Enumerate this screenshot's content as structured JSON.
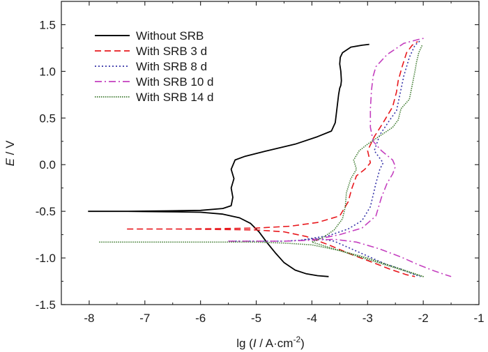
{
  "chart_data": {
    "type": "line",
    "title": "",
    "xlabel": "lg (I / A·cm⁻²)",
    "xlabel_parts": {
      "prefix": "lg (",
      "italic": "I",
      "mid": " / A·cm",
      "sup": "-2",
      "suffix": ")"
    },
    "ylabel": "E / V",
    "ylabel_parts": {
      "italic": "E",
      "rest": " / V"
    },
    "xlim": [
      -8.5,
      -1
    ],
    "ylim": [
      -1.5,
      1.75
    ],
    "xticks": [
      -8,
      -7,
      -6,
      -5,
      -4,
      -3,
      -2,
      -1
    ],
    "xtick_labels": [
      "-8",
      "-7",
      "-6",
      "-5",
      "-4",
      "-3",
      "-2",
      "-1"
    ],
    "yticks": [
      -1.5,
      -1.0,
      -0.5,
      0.0,
      0.5,
      1.0,
      1.5
    ],
    "ytick_labels": [
      "-1.5",
      "-1.0",
      "-0.5",
      "0.0",
      "0.5",
      "1.0",
      "1.5"
    ],
    "grid": false,
    "legend_position": "top-left",
    "series": [
      {
        "name": "Without SRB",
        "color": "#000000",
        "dash": "solid",
        "points": [
          [
            -8.02,
            -0.5
          ],
          [
            -7.3,
            -0.5
          ],
          [
            -6.6,
            -0.505
          ],
          [
            -6.0,
            -0.51
          ],
          [
            -5.6,
            -0.53
          ],
          [
            -5.3,
            -0.57
          ],
          [
            -5.1,
            -0.63
          ],
          [
            -4.95,
            -0.72
          ],
          [
            -4.8,
            -0.84
          ],
          [
            -4.65,
            -0.95
          ],
          [
            -4.5,
            -1.05
          ],
          [
            -4.3,
            -1.13
          ],
          [
            -4.1,
            -1.17
          ],
          [
            -3.9,
            -1.19
          ],
          [
            -3.7,
            -1.2
          ],
          [
            -8.02,
            -0.5
          ],
          [
            -7.3,
            -0.5
          ],
          [
            -6.6,
            -0.495
          ],
          [
            -6.0,
            -0.49
          ],
          [
            -5.6,
            -0.47
          ],
          [
            -5.45,
            -0.44
          ],
          [
            -5.42,
            -0.35
          ],
          [
            -5.45,
            -0.25
          ],
          [
            -5.4,
            -0.15
          ],
          [
            -5.45,
            -0.05
          ],
          [
            -5.38,
            0.05
          ],
          [
            -5.2,
            0.09
          ],
          [
            -4.8,
            0.15
          ],
          [
            -4.3,
            0.22
          ],
          [
            -3.9,
            0.3
          ],
          [
            -3.65,
            0.36
          ],
          [
            -3.58,
            0.45
          ],
          [
            -3.55,
            0.6
          ],
          [
            -3.52,
            0.75
          ],
          [
            -3.5,
            0.82
          ],
          [
            -3.48,
            0.85
          ],
          [
            -3.47,
            0.9
          ],
          [
            -3.48,
            1.0
          ],
          [
            -3.5,
            1.08
          ],
          [
            -3.49,
            1.15
          ],
          [
            -3.45,
            1.2
          ],
          [
            -3.3,
            1.26
          ],
          [
            -3.1,
            1.28
          ],
          [
            -2.97,
            1.29
          ]
        ]
      },
      {
        "name": "With SRB 3 d",
        "color": "#e8171c",
        "dash": "dashed",
        "points": [
          [
            -7.32,
            -0.69
          ],
          [
            -6.4,
            -0.69
          ],
          [
            -5.6,
            -0.695
          ],
          [
            -5.0,
            -0.7
          ],
          [
            -4.5,
            -0.72
          ],
          [
            -4.1,
            -0.77
          ],
          [
            -3.7,
            -0.86
          ],
          [
            -3.3,
            -0.96
          ],
          [
            -2.9,
            -1.05
          ],
          [
            -2.6,
            -1.12
          ],
          [
            -2.3,
            -1.18
          ],
          [
            -2.15,
            -1.2
          ],
          [
            -7.32,
            -0.69
          ],
          [
            -6.4,
            -0.69
          ],
          [
            -5.6,
            -0.685
          ],
          [
            -5.0,
            -0.68
          ],
          [
            -4.4,
            -0.66
          ],
          [
            -3.9,
            -0.62
          ],
          [
            -3.5,
            -0.55
          ],
          [
            -3.35,
            -0.4
          ],
          [
            -3.28,
            -0.25
          ],
          [
            -3.2,
            -0.12
          ],
          [
            -3.05,
            -0.05
          ],
          [
            -2.95,
            0.02
          ],
          [
            -3.0,
            0.15
          ],
          [
            -2.88,
            0.3
          ],
          [
            -2.72,
            0.45
          ],
          [
            -2.55,
            0.62
          ],
          [
            -2.48,
            0.78
          ],
          [
            -2.45,
            0.9
          ],
          [
            -2.38,
            1.05
          ],
          [
            -2.3,
            1.2
          ],
          [
            -2.2,
            1.28
          ],
          [
            -2.1,
            1.32
          ]
        ]
      },
      {
        "name": "With SRB 8 d",
        "color": "#3533a8",
        "dash": "dotted",
        "points": [
          [
            -5.5,
            -0.82
          ],
          [
            -5.0,
            -0.82
          ],
          [
            -4.5,
            -0.82
          ],
          [
            -4.2,
            -0.81
          ],
          [
            -3.9,
            -0.79
          ],
          [
            -3.6,
            -0.82
          ],
          [
            -3.3,
            -0.9
          ],
          [
            -3.0,
            -0.98
          ],
          [
            -2.7,
            -1.06
          ],
          [
            -2.4,
            -1.12
          ],
          [
            -2.2,
            -1.17
          ],
          [
            -2.05,
            -1.2
          ],
          [
            -4.2,
            -0.81
          ],
          [
            -3.7,
            -0.76
          ],
          [
            -3.35,
            -0.69
          ],
          [
            -3.1,
            -0.6
          ],
          [
            -2.95,
            -0.45
          ],
          [
            -2.85,
            -0.2
          ],
          [
            -2.78,
            -0.05
          ],
          [
            -2.72,
            0.02
          ],
          [
            -2.88,
            0.15
          ],
          [
            -2.78,
            0.32
          ],
          [
            -2.6,
            0.48
          ],
          [
            -2.48,
            0.58
          ],
          [
            -2.42,
            0.75
          ],
          [
            -2.35,
            0.95
          ],
          [
            -2.25,
            1.15
          ],
          [
            -2.15,
            1.28
          ],
          [
            -2.05,
            1.33
          ]
        ]
      },
      {
        "name": "With SRB 10 d",
        "color": "#c43fbf",
        "dash": "dashdot",
        "points": [
          [
            -5.5,
            -0.82
          ],
          [
            -5.0,
            -0.82
          ],
          [
            -4.5,
            -0.82
          ],
          [
            -4.0,
            -0.81
          ],
          [
            -3.6,
            -0.8
          ],
          [
            -3.2,
            -0.83
          ],
          [
            -2.8,
            -0.9
          ],
          [
            -2.4,
            -0.99
          ],
          [
            -2.1,
            -1.07
          ],
          [
            -1.8,
            -1.14
          ],
          [
            -1.6,
            -1.18
          ],
          [
            -1.5,
            -1.2
          ],
          [
            -4.0,
            -0.81
          ],
          [
            -3.5,
            -0.75
          ],
          [
            -3.1,
            -0.68
          ],
          [
            -2.85,
            -0.55
          ],
          [
            -2.75,
            -0.35
          ],
          [
            -2.65,
            -0.2
          ],
          [
            -2.55,
            -0.1
          ],
          [
            -2.5,
            -0.02
          ],
          [
            -2.55,
            0.05
          ],
          [
            -2.75,
            0.15
          ],
          [
            -2.9,
            0.25
          ],
          [
            -2.95,
            0.4
          ],
          [
            -2.95,
            0.6
          ],
          [
            -2.93,
            0.8
          ],
          [
            -2.9,
            0.95
          ],
          [
            -2.85,
            1.05
          ],
          [
            -2.65,
            1.18
          ],
          [
            -2.35,
            1.3
          ],
          [
            -2.1,
            1.34
          ],
          [
            -1.95,
            1.36
          ]
        ]
      },
      {
        "name": "With SRB 14 d",
        "color": "#3d7a2e",
        "dash": "densedot",
        "points": [
          [
            -7.82,
            -0.83
          ],
          [
            -7.0,
            -0.83
          ],
          [
            -6.0,
            -0.83
          ],
          [
            -5.0,
            -0.83
          ],
          [
            -4.5,
            -0.84
          ],
          [
            -4.0,
            -0.86
          ],
          [
            -3.5,
            -0.92
          ],
          [
            -3.0,
            -1.0
          ],
          [
            -2.6,
            -1.08
          ],
          [
            -2.3,
            -1.14
          ],
          [
            -2.1,
            -1.18
          ],
          [
            -2.0,
            -1.2
          ],
          [
            -4.0,
            -0.83
          ],
          [
            -3.8,
            -0.78
          ],
          [
            -3.6,
            -0.7
          ],
          [
            -3.45,
            -0.58
          ],
          [
            -3.4,
            -0.45
          ],
          [
            -3.38,
            -0.3
          ],
          [
            -3.3,
            -0.15
          ],
          [
            -3.2,
            -0.05
          ],
          [
            -3.25,
            0.05
          ],
          [
            -3.15,
            0.15
          ],
          [
            -3.0,
            0.22
          ],
          [
            -2.8,
            0.3
          ],
          [
            -2.55,
            0.4
          ],
          [
            -2.45,
            0.48
          ],
          [
            -2.4,
            0.6
          ],
          [
            -2.25,
            0.7
          ],
          [
            -2.2,
            0.85
          ],
          [
            -2.15,
            1.0
          ],
          [
            -2.12,
            1.1
          ],
          [
            -2.08,
            1.2
          ],
          [
            -2.02,
            1.28
          ]
        ]
      }
    ]
  }
}
